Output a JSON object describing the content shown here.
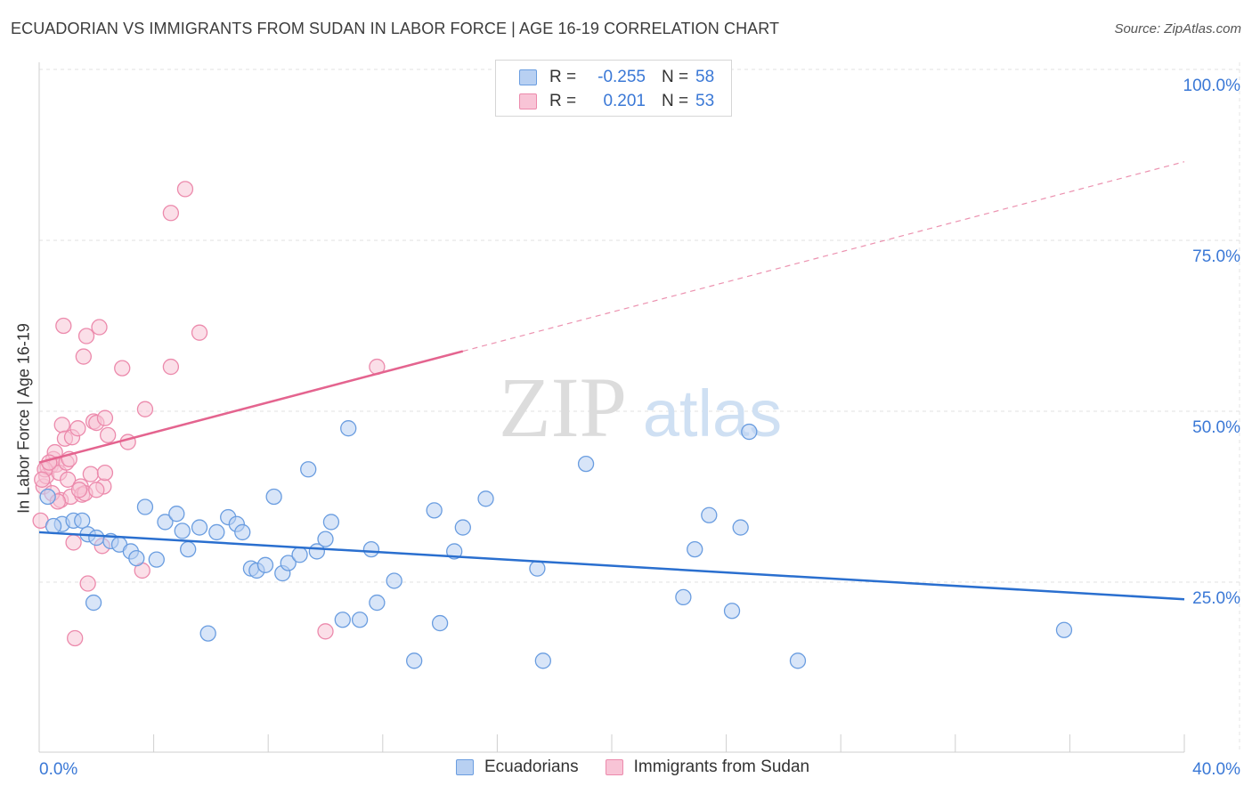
{
  "title": "ECUADORIAN VS IMMIGRANTS FROM SUDAN IN LABOR FORCE | AGE 16-19 CORRELATION CHART",
  "source": "Source: ZipAtlas.com",
  "watermark": {
    "zip": "ZIP",
    "atlas": "atlas"
  },
  "colors": {
    "blue_fill": "#b8d0f2",
    "blue_stroke": "#6a9de0",
    "blue_line": "#2a6fcf",
    "pink_fill": "#f8c4d6",
    "pink_stroke": "#ec8aac",
    "pink_line": "#e4648f",
    "axis_text": "#3a78d6"
  },
  "legend": {
    "rows": [
      {
        "r_label": "R =",
        "r_value": "-0.255",
        "n_label": "N =",
        "n_value": "58"
      },
      {
        "r_label": "R =",
        "r_value": "0.201",
        "n_label": "N =",
        "n_value": "53"
      }
    ]
  },
  "bottom_legend": {
    "series1": "Ecuadorians",
    "series2": "Immigrants from Sudan"
  },
  "chart_data": {
    "type": "scatter",
    "xlabel": "",
    "ylabel": "In Labor Force | Age 16-19",
    "xlim": [
      0,
      40
    ],
    "ylim": [
      0,
      105
    ],
    "x_tick_labels": [
      "0.0%",
      "40.0%"
    ],
    "y_ticks": [
      25,
      50,
      75,
      100
    ],
    "y_tick_labels": [
      "25.0%",
      "50.0%",
      "75.0%",
      "100.0%"
    ],
    "series": [
      {
        "name": "Ecuadorians",
        "color": "blue",
        "trend": {
          "x0": 0,
          "y0": 32.3,
          "x1": 40,
          "y1": 22.5,
          "dashed_from": null
        },
        "points": [
          [
            0.3,
            37.5
          ],
          [
            0.8,
            33.5
          ],
          [
            1.2,
            34
          ],
          [
            1.5,
            34
          ],
          [
            1.7,
            32
          ],
          [
            2.0,
            31.5
          ],
          [
            2.5,
            31
          ],
          [
            2.8,
            30.5
          ],
          [
            3.2,
            29.5
          ],
          [
            3.4,
            28.5
          ],
          [
            3.7,
            36
          ],
          [
            4.1,
            28.3
          ],
          [
            4.4,
            33.8
          ],
          [
            4.8,
            35
          ],
          [
            5.0,
            32.5
          ],
          [
            5.2,
            29.8
          ],
          [
            5.6,
            33
          ],
          [
            5.9,
            17.5
          ],
          [
            6.2,
            32.3
          ],
          [
            6.6,
            34.5
          ],
          [
            6.9,
            33.5
          ],
          [
            7.1,
            32.3
          ],
          [
            7.4,
            27
          ],
          [
            7.6,
            26.7
          ],
          [
            7.9,
            27.5
          ],
          [
            8.2,
            37.5
          ],
          [
            8.5,
            26.3
          ],
          [
            8.7,
            27.8
          ],
          [
            9.1,
            29
          ],
          [
            9.4,
            41.5
          ],
          [
            9.7,
            29.5
          ],
          [
            10.0,
            31.3
          ],
          [
            10.2,
            33.8
          ],
          [
            10.6,
            19.5
          ],
          [
            10.8,
            47.5
          ],
          [
            11.2,
            19.5
          ],
          [
            11.6,
            29.8
          ],
          [
            11.8,
            22
          ],
          [
            12.4,
            25.2
          ],
          [
            13.1,
            13.5
          ],
          [
            13.8,
            35.5
          ],
          [
            14.0,
            19
          ],
          [
            14.5,
            29.5
          ],
          [
            14.8,
            33
          ],
          [
            15.6,
            37.2
          ],
          [
            17.4,
            27
          ],
          [
            17.6,
            13.5
          ],
          [
            19.1,
            42.3
          ],
          [
            22.5,
            22.8
          ],
          [
            22.9,
            29.8
          ],
          [
            23.4,
            34.8
          ],
          [
            24.2,
            20.8
          ],
          [
            24.5,
            33
          ],
          [
            24.8,
            47
          ],
          [
            26.5,
            13.5
          ],
          [
            35.8,
            18
          ],
          [
            1.9,
            22
          ],
          [
            0.5,
            33.2
          ]
        ]
      },
      {
        "name": "Immigrants from Sudan",
        "color": "pink",
        "trend": {
          "x0": 0,
          "y0": 42.5,
          "x1": 40,
          "y1": 86.5,
          "dashed_from": 14.8
        },
        "points": [
          [
            0.05,
            34
          ],
          [
            0.15,
            39
          ],
          [
            0.25,
            40.5
          ],
          [
            0.3,
            41.8
          ],
          [
            0.4,
            42
          ],
          [
            0.5,
            43
          ],
          [
            0.55,
            44
          ],
          [
            0.6,
            42.2
          ],
          [
            0.7,
            41
          ],
          [
            0.75,
            37
          ],
          [
            0.8,
            48
          ],
          [
            0.85,
            62.5
          ],
          [
            0.9,
            46
          ],
          [
            0.95,
            42.5
          ],
          [
            1.0,
            40
          ],
          [
            1.1,
            37.5
          ],
          [
            1.15,
            46.2
          ],
          [
            1.2,
            30.8
          ],
          [
            1.25,
            16.8
          ],
          [
            1.35,
            47.5
          ],
          [
            1.45,
            39
          ],
          [
            1.5,
            37.8
          ],
          [
            1.55,
            58
          ],
          [
            1.6,
            38
          ],
          [
            1.65,
            61
          ],
          [
            1.7,
            24.8
          ],
          [
            1.8,
            40.8
          ],
          [
            1.9,
            48.5
          ],
          [
            2.0,
            48.3
          ],
          [
            2.1,
            62.3
          ],
          [
            2.2,
            30.3
          ],
          [
            2.25,
            39
          ],
          [
            2.3,
            41
          ],
          [
            2.3,
            49
          ],
          [
            2.4,
            46.5
          ],
          [
            2.9,
            56.3
          ],
          [
            3.1,
            45.5
          ],
          [
            3.6,
            26.7
          ],
          [
            3.7,
            50.3
          ],
          [
            4.6,
            56.5
          ],
          [
            4.6,
            79
          ],
          [
            5.1,
            82.5
          ],
          [
            5.6,
            61.5
          ],
          [
            10.0,
            17.8
          ],
          [
            11.8,
            56.5
          ],
          [
            0.2,
            41.5
          ],
          [
            0.35,
            42.5
          ],
          [
            0.45,
            38
          ],
          [
            0.65,
            36.8
          ],
          [
            1.05,
            43
          ],
          [
            1.4,
            38.5
          ],
          [
            2.0,
            38.5
          ],
          [
            0.1,
            40
          ]
        ]
      }
    ]
  }
}
